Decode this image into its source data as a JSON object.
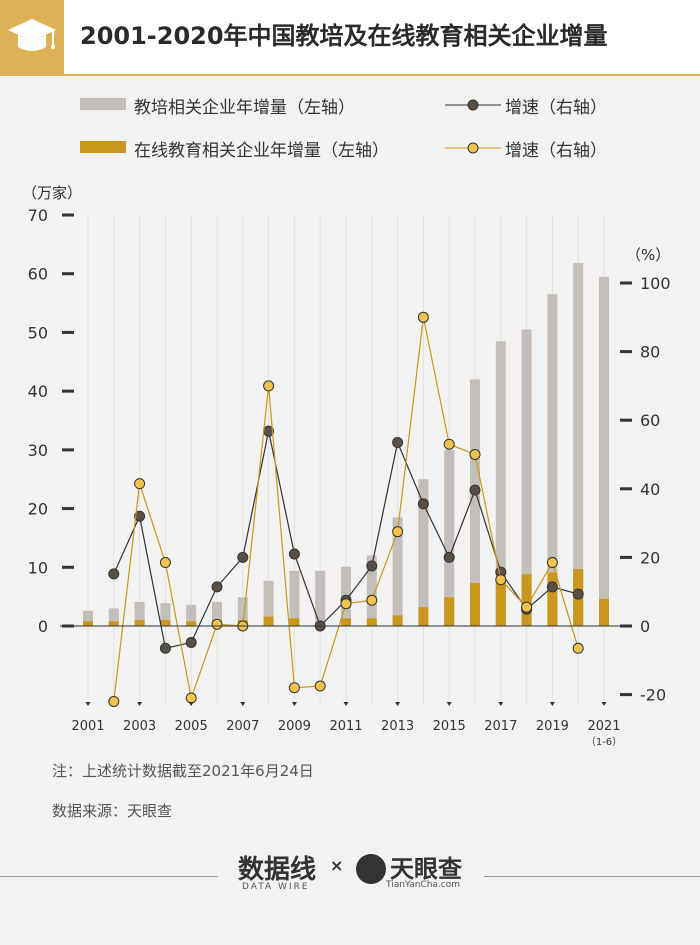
{
  "header": {
    "title": "2001-2020年中国教培及在线教育相关企业增量",
    "icon": "graduation-cap-icon",
    "accent": "#dcb256"
  },
  "legend": {
    "bar1": "教培相关企业年增量（左轴）",
    "bar2": "在线教育相关企业年增量（左轴）",
    "line1": "增速（右轴）",
    "line2": "增速（右轴）"
  },
  "units": {
    "left": "（万家）",
    "right": "（%）"
  },
  "notes": {
    "note": "注：上述统计数据截至2021年6月24日",
    "source": "数据来源：天眼查"
  },
  "footer": {
    "logo1": "数据线",
    "logo1_sub": "DATA WIRE",
    "times": "×",
    "logo2": "天眼查",
    "logo2_sub": "TianYanCha.com"
  },
  "chart_data": {
    "type": "bar",
    "title": "2001-2020年中国教培及在线教育相关企业增量",
    "years": [
      "2001",
      "2002",
      "2003",
      "2004",
      "2005",
      "2006",
      "2007",
      "2008",
      "2009",
      "2010",
      "2011",
      "2012",
      "2013",
      "2014",
      "2015",
      "2016",
      "2017",
      "2018",
      "2019",
      "2020",
      "2021"
    ],
    "x_tick_labels": [
      "2001",
      "2003",
      "2005",
      "2007",
      "2009",
      "2011",
      "2013",
      "2015",
      "2017",
      "2019",
      "2021"
    ],
    "x_tick_sublabel": "（1-6）",
    "left_axis": {
      "unit": "（万家）",
      "ylim": [
        0,
        70
      ],
      "ticks": [
        0,
        10,
        20,
        30,
        40,
        50,
        60,
        70
      ]
    },
    "right_axis": {
      "unit": "（%）",
      "ylim": [
        -20,
        100
      ],
      "ticks": [
        -20,
        0,
        20,
        40,
        60,
        80,
        100
      ]
    },
    "series": [
      {
        "name": "教培相关企业年增量（左轴）",
        "axis": "left",
        "kind": "bar",
        "color": "#c3beb7",
        "values": [
          2.6,
          3.0,
          4.1,
          3.9,
          3.6,
          4.1,
          4.9,
          7.7,
          9.4,
          9.4,
          10.1,
          12.0,
          18.5,
          25.0,
          30.0,
          42.0,
          48.5,
          50.5,
          56.5,
          61.8,
          59.5
        ]
      },
      {
        "name": "在线教育相关企业年增量（左轴）",
        "axis": "left",
        "kind": "bar",
        "color": "#c9961e",
        "values": [
          0.8,
          0.8,
          1.0,
          1.0,
          0.8,
          0.9,
          1.0,
          1.6,
          1.3,
          0.6,
          1.3,
          1.3,
          1.8,
          3.2,
          4.9,
          7.3,
          7.8,
          8.8,
          9.1,
          9.7,
          4.6
        ]
      },
      {
        "name": "增速（右轴）",
        "axis": "right",
        "kind": "line",
        "color": "#333333",
        "marker": "#5a4f45",
        "values": [
          null,
          15.2,
          32.0,
          -6.5,
          -4.8,
          11.4,
          20.0,
          56.8,
          21.0,
          0,
          7.5,
          17.5,
          53.5,
          35.6,
          20.0,
          39.6,
          15.7,
          4.9,
          11.4,
          9.3,
          null
        ]
      },
      {
        "name": "增速（右轴）",
        "axis": "right",
        "kind": "line",
        "color": "#c9961e",
        "marker": "#f0c44c",
        "values": [
          null,
          -22.0,
          41.5,
          18.5,
          -21.0,
          0.5,
          0,
          70.0,
          -18.0,
          -17.5,
          6.5,
          7.5,
          27.5,
          90.0,
          53.0,
          50.0,
          13.5,
          5.5,
          18.5,
          -6.5,
          null
        ]
      }
    ]
  }
}
